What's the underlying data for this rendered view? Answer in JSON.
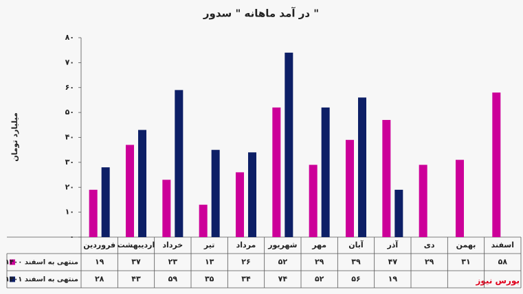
{
  "chart_data": {
    "type": "bar",
    "title": "در آمد ماهانه \" سدور \"",
    "y_label": "میلیارد تومان",
    "watermark": "بورس نیوز",
    "categories": [
      "فروردین",
      "اردیبهشت",
      "خرداد",
      "تیر",
      "مرداد",
      "شهریور",
      "مهر",
      "آبان",
      "آذر",
      "دی",
      "بهمن",
      "اسفند"
    ],
    "series": [
      {
        "name": "منتهی به اسفند ۱۴۰۰",
        "color": "#cc0099",
        "values": [
          19,
          37,
          23,
          13,
          26,
          52,
          29,
          39,
          47,
          29,
          31,
          58
        ],
        "value_labels": [
          "۱۹",
          "۳۷",
          "۲۳",
          "۱۳",
          "۲۶",
          "۵۲",
          "۲۹",
          "۳۹",
          "۴۷",
          "۲۹",
          "۳۱",
          "۵۸"
        ]
      },
      {
        "name": "منتهی به اسفند ۱۴۰۱",
        "color": "#0d1f66",
        "values": [
          28,
          43,
          59,
          35,
          34,
          74,
          52,
          56,
          19,
          null,
          null,
          null
        ],
        "value_labels": [
          "۲۸",
          "۴۳",
          "۵۹",
          "۳۵",
          "۳۴",
          "۷۴",
          "۵۲",
          "۵۶",
          "۱۹",
          null,
          null,
          null
        ]
      }
    ],
    "ylim": [
      0,
      80
    ],
    "yticks": [
      {
        "value": 0,
        "label": "۰"
      },
      {
        "value": 10,
        "label": "۱۰"
      },
      {
        "value": 20,
        "label": "۲۰"
      },
      {
        "value": 30,
        "label": "۳۰"
      },
      {
        "value": 40,
        "label": "۴۰"
      },
      {
        "value": 50,
        "label": "۵۰"
      },
      {
        "value": 60,
        "label": "۶۰"
      },
      {
        "value": 70,
        "label": "۷۰"
      },
      {
        "value": 80,
        "label": "۸۰"
      }
    ],
    "grid": false
  }
}
